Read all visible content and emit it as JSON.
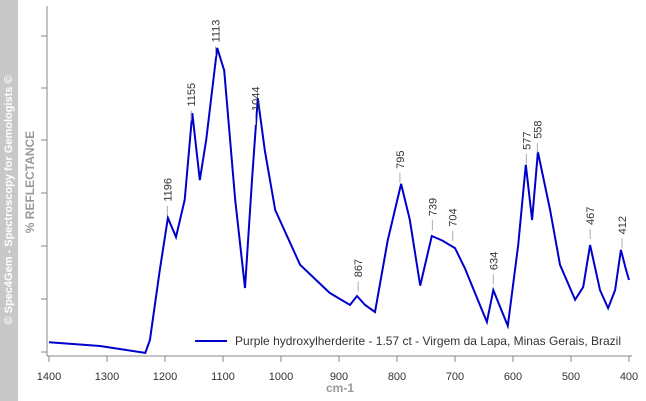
{
  "chart_data": {
    "type": "line",
    "side_text": "© Spec4Gem - Spectroscopy for Gemologists ©",
    "y_label": "% REFLECTANCE",
    "x_label": "cm-1",
    "xlim": [
      1400,
      400
    ],
    "xticks": [
      1400,
      1300,
      1200,
      1100,
      1000,
      900,
      800,
      700,
      600,
      500,
      400
    ],
    "ylim": [
      0,
      100
    ],
    "legend": "bottom-right",
    "x": [
      1400,
      1312,
      1234,
      1226,
      1209,
      1195,
      1181,
      1166,
      1153,
      1140,
      1129,
      1110,
      1098,
      1079,
      1062,
      1050,
      1040,
      1028,
      1010,
      967,
      916,
      881,
      869,
      855,
      838,
      816,
      793,
      778,
      760,
      740,
      722,
      700,
      683,
      657,
      645,
      634,
      609,
      591,
      578,
      567,
      557,
      536,
      519,
      493,
      479,
      467,
      450,
      436,
      424,
      414,
      405,
      400
    ],
    "series": [
      {
        "name": "Purple hydroxylherderite - 1.57 ct - Virgem da Lapa, Minas Gerais, Brazil",
        "color": "#0000cc",
        "values": [
          3.7,
          2.6,
          0.6,
          4.3,
          24.5,
          39.5,
          34,
          44.7,
          69.7,
          50.4,
          62,
          88.5,
          82,
          44.7,
          19.3,
          50.4,
          74,
          59,
          41.8,
          26,
          17.9,
          14.4,
          17,
          14.4,
          12.4,
          33,
          49.3,
          39,
          20,
          34.3,
          33,
          30.8,
          25,
          14.4,
          9.5,
          18.7,
          8.4,
          31.7,
          54.8,
          38.9,
          58.5,
          41.8,
          26,
          15.9,
          19.6,
          31.7,
          18.7,
          13.5,
          18.7,
          30.3,
          24.5,
          21.6
        ]
      }
    ],
    "peak_labels": [
      1196,
      1155,
      1113,
      1044,
      867,
      795,
      739,
      704,
      634,
      577,
      558,
      467,
      412
    ]
  }
}
